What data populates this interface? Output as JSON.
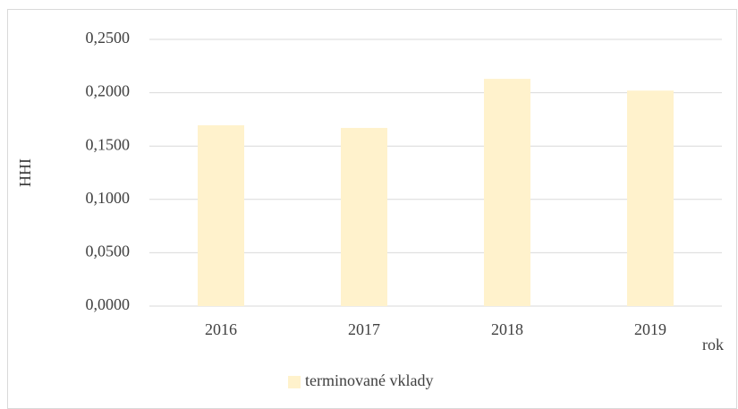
{
  "chart_data": {
    "type": "bar",
    "categories": [
      "2016",
      "2017",
      "2018",
      "2019"
    ],
    "series": [
      {
        "name": "terminované vklady",
        "color": "#fff2cc",
        "values": [
          0.1695,
          0.167,
          0.213,
          0.202
        ]
      }
    ],
    "ylim": [
      0,
      0.25
    ],
    "yticks": [
      {
        "value": 0,
        "label": "0,0000"
      },
      {
        "value": 0.05,
        "label": "0,0500"
      },
      {
        "value": 0.1,
        "label": "0,1000"
      },
      {
        "value": 0.15,
        "label": "0,1500"
      },
      {
        "value": 0.2,
        "label": "0,2000"
      },
      {
        "value": 0.25,
        "label": "0,2500"
      }
    ],
    "y_label": "HHI",
    "x_label": "rok",
    "grid": true,
    "legend": "bottom"
  }
}
